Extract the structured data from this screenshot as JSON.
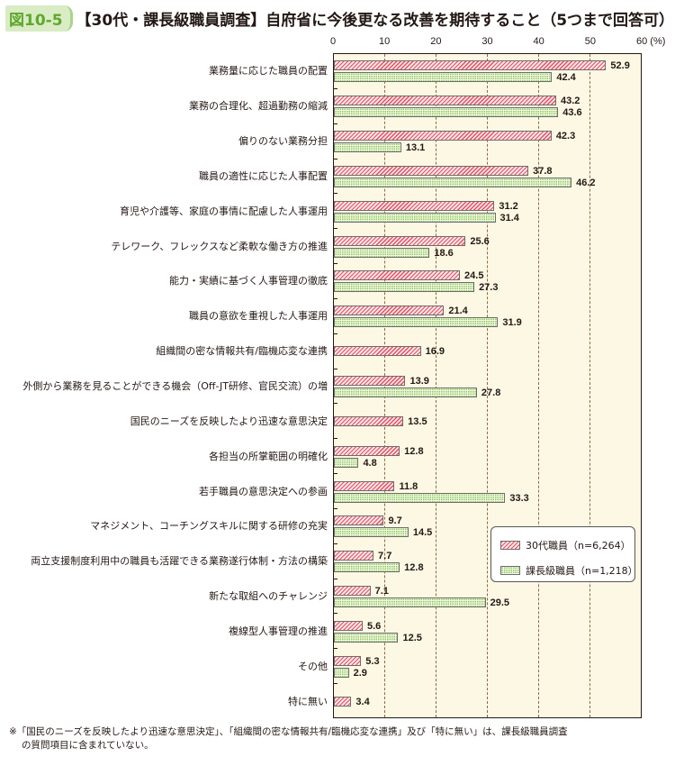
{
  "header": {
    "figure_number": "図10-5",
    "title": "【30代・課長級職員調査】自府省に今後更なる改善を期待すること（5つまで回答可）"
  },
  "colors": {
    "series_30s": "#e8505f",
    "series_manager": "#8cc55c",
    "plot_background": "#fdf8e4",
    "badge_background": "#d9ecc4",
    "badge_text": "#5fa82e"
  },
  "axis": {
    "ticks": [
      "0",
      "10",
      "20",
      "30",
      "40",
      "50",
      "60 (%)"
    ]
  },
  "legend": {
    "items": [
      {
        "label": "30代職員（n=6,264）"
      },
      {
        "label": "課長級職員（n=1,218）"
      }
    ]
  },
  "footnote": {
    "line1": "※「国民のニーズを反映したより迅速な意思決定」、「組織間の密な情報共有/臨機応変な連携」及び「特に無い」は、課長級職員調査",
    "line2": "の質問項目に含まれていない。"
  },
  "chart_data": {
    "type": "bar",
    "orientation": "horizontal",
    "title": "【30代・課長級職員調査】自府省に今後更なる改善を期待すること（5つまで回答可）",
    "xlabel": "(%)",
    "ylabel": "",
    "xlim": [
      0,
      60
    ],
    "xticks": [
      0,
      10,
      20,
      30,
      40,
      50,
      60
    ],
    "grid": "vertical dashed",
    "legend_position": "lower right inside plot",
    "categories": [
      "業務量に応じた職員の配置",
      "業務の合理化、超過勤務の縮減",
      "偏りのない業務分担",
      "職員の適性に応じた人事配置",
      "育児や介護等、家庭の事情に配慮した人事運用",
      "テレワーク、フレックスなど柔軟な働き方の推進",
      "能力・実績に基づく人事管理の徹底",
      "職員の意欲を重視した人事運用",
      "組織間の密な情報共有/臨機応変な連携",
      "外側から業務を見ることができる機会（Off-JT研修、官民交流）の増",
      "国民のニーズを反映したより迅速な意思決定",
      "各担当の所掌範囲の明確化",
      "若手職員の意思決定への参画",
      "マネジメント、コーチングスキルに関する研修の充実",
      "両立支援制度利用中の職員も活躍できる業務遂行体制・方法の構築",
      "新たな取組へのチャレンジ",
      "複線型人事管理の推進",
      "その他",
      "特に無い"
    ],
    "series": [
      {
        "name": "30代職員（n=6,264）",
        "values": [
          52.9,
          43.2,
          42.3,
          37.8,
          31.2,
          25.6,
          24.5,
          21.4,
          16.9,
          13.9,
          13.5,
          12.8,
          11.8,
          9.7,
          7.7,
          7.1,
          5.6,
          5.3,
          3.4
        ]
      },
      {
        "name": "課長級職員（n=1,218）",
        "values": [
          42.4,
          43.6,
          13.1,
          46.2,
          31.4,
          18.6,
          27.3,
          31.9,
          null,
          27.8,
          null,
          4.8,
          33.3,
          14.5,
          12.8,
          29.5,
          12.5,
          2.9,
          null
        ]
      }
    ]
  }
}
